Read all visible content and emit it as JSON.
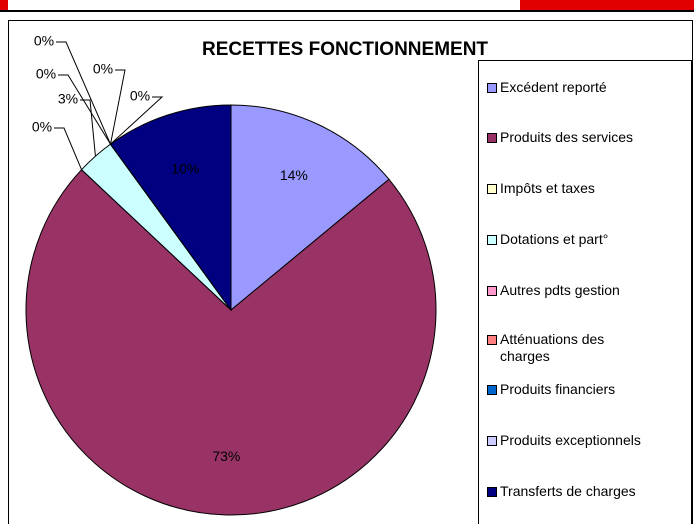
{
  "chart_data": {
    "type": "pie",
    "title": "RECETTES FONCTIONNEMENT",
    "categories": [
      "Excédent reporté",
      "Produits des services",
      "Impôts et taxes",
      "Dotations et part°",
      "Autres pdts gestion",
      "Atténuations des charges",
      "Produits financiers",
      "Produits exceptionnels",
      "Transferts de charges"
    ],
    "values": [
      14,
      73,
      0,
      3,
      0,
      0,
      0,
      0,
      10
    ],
    "value_labels": [
      "14%",
      "73%",
      "0%",
      "3%",
      "0%",
      "0%",
      "0%",
      "0%",
      "10%"
    ],
    "colors": [
      "#9999ff",
      "#993366",
      "#ffffcc",
      "#ccffff",
      "#ff99cc",
      "#ff8080",
      "#0066cc",
      "#ccccff",
      "#000080"
    ],
    "legend": "right"
  }
}
